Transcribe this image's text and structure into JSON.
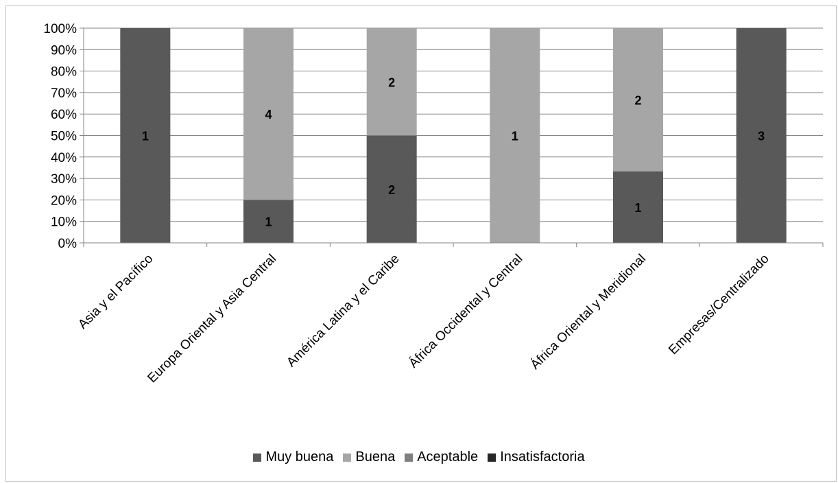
{
  "chart_data": {
    "type": "bar",
    "stacked": "percent",
    "categories": [
      "Asia y el Pacífico",
      "Europa Oriental y Asia Central",
      "América Latina y el Caribe",
      "África Occidental y Central",
      "África Oriental y Meridional",
      "Empresas/Centralizado"
    ],
    "series": [
      {
        "name": "Muy buena",
        "values": [
          1,
          1,
          2,
          0,
          1,
          3
        ],
        "color": "#595959"
      },
      {
        "name": "Buena",
        "values": [
          0,
          4,
          2,
          1,
          2,
          0
        ],
        "color": "#a6a6a6"
      },
      {
        "name": "Aceptable",
        "values": [
          0,
          0,
          0,
          0,
          0,
          0
        ],
        "color": "#7f7f7f"
      },
      {
        "name": "Insatisfactoria",
        "values": [
          0,
          0,
          0,
          0,
          0,
          0
        ],
        "color": "#262626"
      }
    ],
    "y_ticks": [
      "0%",
      "10%",
      "20%",
      "30%",
      "40%",
      "50%",
      "60%",
      "70%",
      "80%",
      "90%",
      "100%"
    ],
    "ylim": [
      0,
      100
    ],
    "grid": true,
    "legend": "bottom"
  }
}
